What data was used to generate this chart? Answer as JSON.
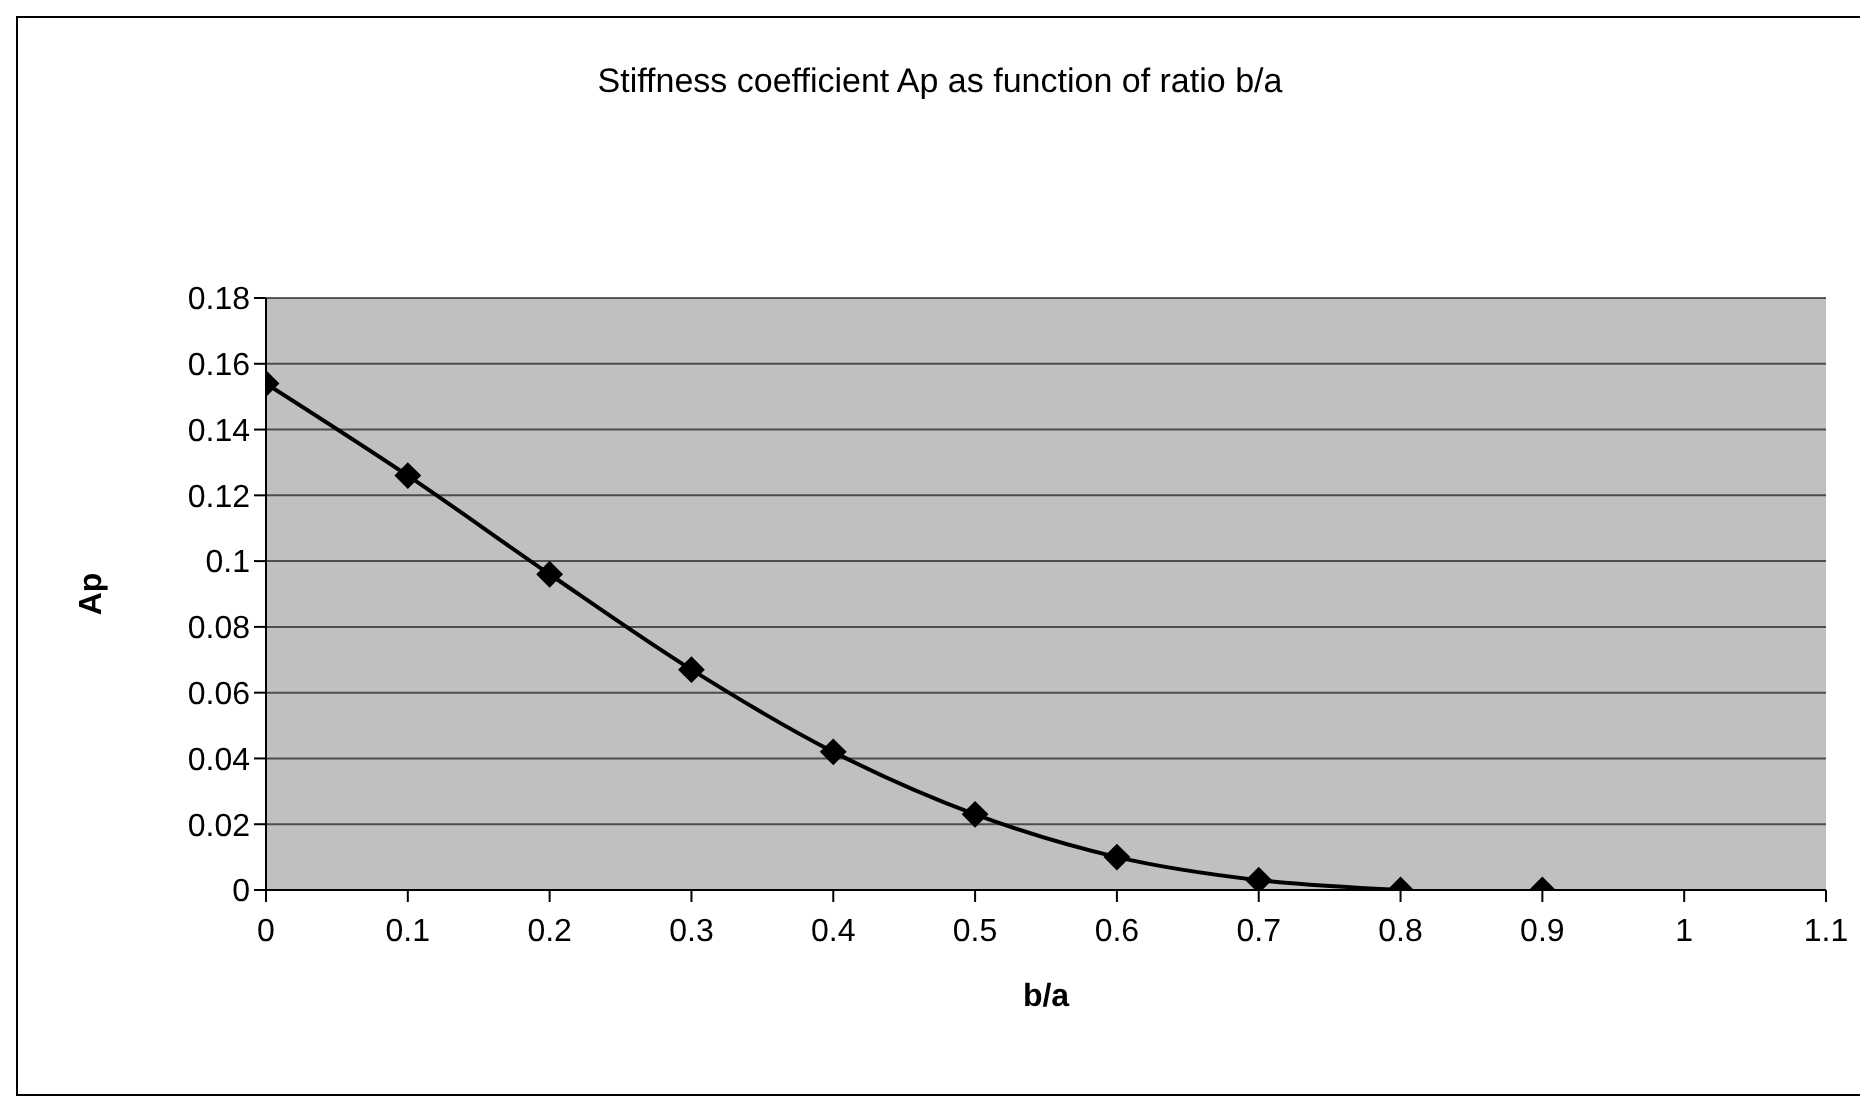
{
  "chart_data": {
    "type": "line",
    "title": "Stiffness coefficient Ap as function of ratio b/a",
    "xlabel": "b/a",
    "ylabel": "Ap",
    "series": [
      {
        "color": "#000000",
        "x": [
          0,
          0.1,
          0.2,
          0.3,
          0.4,
          0.5,
          0.6,
          0.7,
          0.8
        ],
        "values": [
          0.154,
          0.126,
          0.096,
          0.067,
          0.042,
          0.023,
          0.01,
          0.003,
          0.0
        ]
      },
      {
        "type": "scatter",
        "color": "#000000",
        "x": [
          0.9
        ],
        "values": [
          0.0
        ]
      }
    ],
    "xlim": [
      0,
      1.1
    ],
    "xticks": [
      0,
      0.1,
      0.2,
      0.3,
      0.4,
      0.5,
      0.6,
      0.7,
      0.8,
      0.9,
      1,
      1.1
    ],
    "ylim": [
      0,
      0.18
    ],
    "yticks": [
      0,
      0.02,
      0.04,
      0.06,
      0.08,
      0.1,
      0.12,
      0.14,
      0.16,
      0.18
    ],
    "grid": "y",
    "marker": "diamond",
    "line_style": "solid",
    "legend": false
  }
}
